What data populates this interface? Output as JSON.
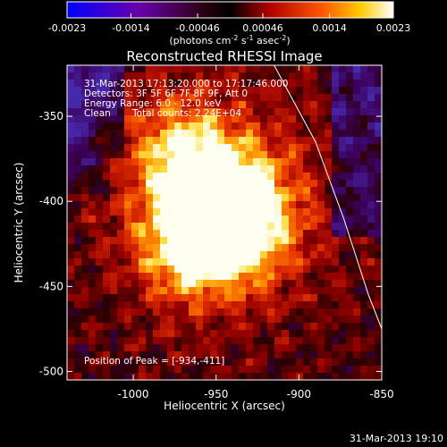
{
  "colorbar": {
    "ticks": [
      "-0.0023",
      "-0.0014",
      "-0.00046",
      "0.00046",
      "0.0014",
      "0.0023"
    ],
    "tick_values": [
      -0.0023,
      -0.0014,
      -0.00046,
      0.00046,
      0.0014,
      0.0023
    ],
    "units_prefix": "(photons cm",
    "units_exp1": "-2",
    "units_mid": " s",
    "units_exp2": "-1",
    "units_mid2": " asec",
    "units_exp3": "-2",
    "units_suffix": ")"
  },
  "title": "Reconstructed RHESSI Image",
  "info": {
    "time_range": "31-Mar-2013 17:13:20.000 to 17:17:46.000",
    "detectors": "Detectors: 3F 5F 6F 7F 8F 9F, Att 0",
    "energy": "Energy Range: 6.0 - 12.0 keV",
    "clean": "Clean",
    "counts": "Total counts: 2.24E+04",
    "peak": "Position of Peak = [-934,-411]"
  },
  "footer_timestamp": "31-Mar-2013 19:10",
  "chart_data": {
    "type": "heatmap",
    "xlabel": "Heliocentric X (arcsec)",
    "ylabel": "Heliocentric Y (arcsec)",
    "xlim": [
      -1040,
      -850
    ],
    "ylim": [
      -505,
      -320
    ],
    "x_ticks": [
      -1000,
      -950,
      -900,
      -850
    ],
    "x_tick_labels": [
      "-1000",
      "-950",
      "-900",
      "-850"
    ],
    "y_ticks": [
      -350,
      -400,
      -450,
      -500
    ],
    "y_tick_labels": [
      "-350",
      "-400",
      "-450",
      "-500"
    ],
    "peak": [
      -934,
      -411
    ],
    "sources": [
      {
        "x": -935,
        "y": -410,
        "intensity": 1.0
      },
      {
        "x": -963,
        "y": -425,
        "intensity": 0.9
      },
      {
        "x": -955,
        "y": -385,
        "intensity": 0.6
      },
      {
        "x": -975,
        "y": -370,
        "intensity": 0.45
      }
    ],
    "colors": {
      "low": "#0000ff",
      "mid": "#000000",
      "high": "#ffffff"
    },
    "limb_curve": [
      [
        -915,
        -320
      ],
      [
        -890,
        -365
      ],
      [
        -873,
        -410
      ],
      [
        -858,
        -455
      ],
      [
        -850,
        -475
      ]
    ]
  }
}
